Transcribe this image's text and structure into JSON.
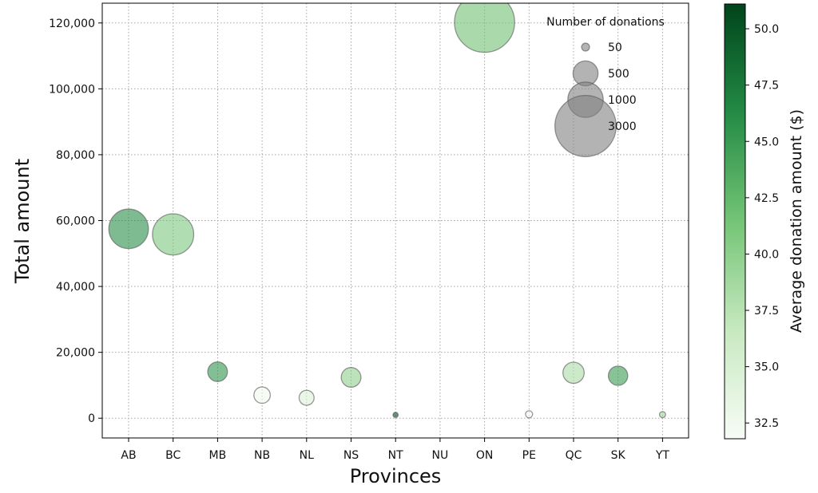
{
  "chart_data": {
    "type": "scatter",
    "xlabel": "Provinces",
    "ylabel": "Total amount",
    "categories": [
      "AB",
      "BC",
      "MB",
      "NB",
      "NL",
      "NS",
      "NT",
      "NU",
      "ON",
      "PE",
      "QC",
      "SK",
      "YT"
    ],
    "ylim": [
      -6000,
      126000
    ],
    "yticks": [
      0,
      20000,
      40000,
      60000,
      80000,
      100000,
      120000
    ],
    "ytick_labels": [
      "0",
      "20,000",
      "40,000",
      "60,000",
      "80,000",
      "100,000",
      "120,000"
    ],
    "grid": true,
    "points": [
      {
        "x": "AB",
        "total": 57500,
        "count": 1250,
        "avg": 46.0
      },
      {
        "x": "BC",
        "total": 55800,
        "count": 1360,
        "avg": 41.0
      },
      {
        "x": "MB",
        "total": 14100,
        "count": 310,
        "avg": 45.5
      },
      {
        "x": "NB",
        "total": 7000,
        "count": 215,
        "avg": 32.5
      },
      {
        "x": "NL",
        "total": 6200,
        "count": 180,
        "avg": 34.5
      },
      {
        "x": "NS",
        "total": 12400,
        "count": 310,
        "avg": 40.0
      },
      {
        "x": "NT",
        "total": 1000,
        "count": 22,
        "avg": 50.5
      },
      {
        "x": "ON",
        "total": 120200,
        "count": 2890,
        "avg": 41.6
      },
      {
        "x": "PE",
        "total": 1200,
        "count": 40,
        "avg": 32.0
      },
      {
        "x": "QC",
        "total": 13800,
        "count": 360,
        "avg": 38.3
      },
      {
        "x": "SK",
        "total": 12900,
        "count": 300,
        "avg": 45.0
      },
      {
        "x": "YT",
        "total": 1100,
        "count": 30,
        "avg": 39.0
      }
    ],
    "size_legend": {
      "title": "Number of donations",
      "entries": [
        {
          "label": "50",
          "count": 50
        },
        {
          "label": "500",
          "count": 500
        },
        {
          "label": "1000",
          "count": 1000
        },
        {
          "label": "3000",
          "count": 3000
        }
      ]
    },
    "colorbar": {
      "label": "Average donation amount ($)",
      "range": [
        31.8,
        51.1
      ],
      "ticks": [
        32.5,
        35.0,
        37.5,
        40.0,
        42.5,
        45.0,
        47.5,
        50.0
      ],
      "tick_labels": [
        "32.5",
        "35.0",
        "37.5",
        "40.0",
        "42.5",
        "45.0",
        "47.5",
        "50.0"
      ],
      "color_low": "#f7fcf5",
      "color_high": "#00441b"
    },
    "marker_alpha": 0.6,
    "legend_color": "#808080"
  }
}
